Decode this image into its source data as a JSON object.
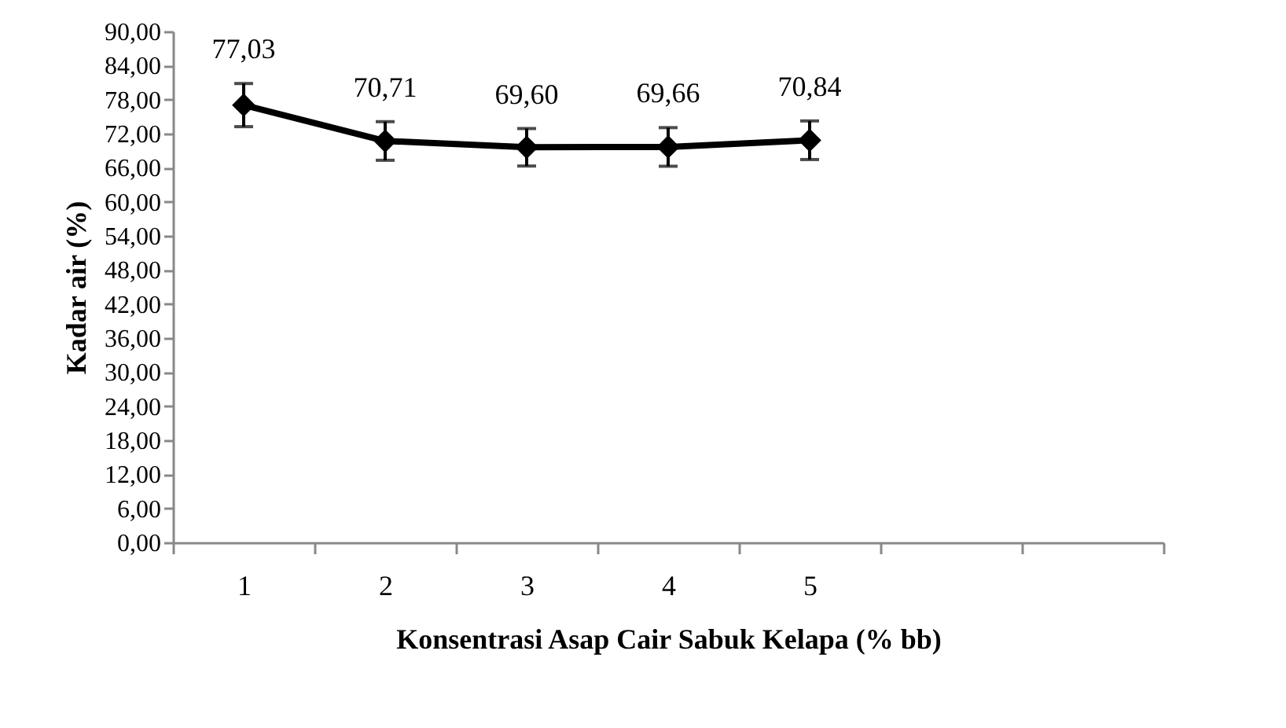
{
  "chart_data": {
    "type": "line",
    "xlabel": "Konsentrasi Asap Cair Sabuk Kelapa (% bb)",
    "ylabel": "Kadar air (%)",
    "categories": [
      "1",
      "2",
      "3",
      "4",
      "5",
      null,
      null
    ],
    "series": [
      {
        "color": "#000000",
        "values": [
          77.03,
          70.71,
          69.6,
          69.66,
          70.84,
          null,
          null
        ],
        "errors": [
          3.8,
          3.4,
          3.3,
          3.4,
          3.4,
          null,
          null
        ],
        "value_labels": [
          "77,03",
          "70,71",
          "69,60",
          "69,66",
          "70,84",
          null,
          null
        ]
      }
    ],
    "ylim": [
      0,
      90
    ],
    "yticks": [
      {
        "value": 0,
        "label": "0,00"
      },
      {
        "value": 6,
        "label": "6,00"
      },
      {
        "value": 12,
        "label": "12,00"
      },
      {
        "value": 18,
        "label": "18,00"
      },
      {
        "value": 24,
        "label": "24,00"
      },
      {
        "value": 30,
        "label": "30,00"
      },
      {
        "value": 36,
        "label": "36,00"
      },
      {
        "value": 42,
        "label": "42,00"
      },
      {
        "value": 48,
        "label": "48,00"
      },
      {
        "value": 54,
        "label": "54,00"
      },
      {
        "value": 60,
        "label": "60,00"
      },
      {
        "value": 66,
        "label": "66,00"
      },
      {
        "value": 72,
        "label": "72,00"
      },
      {
        "value": 78,
        "label": "78,00"
      },
      {
        "value": 84,
        "label": "84,00"
      },
      {
        "value": 90,
        "label": "90,00"
      }
    ],
    "marker": "diamond",
    "line_style": "solid",
    "grid": false
  }
}
